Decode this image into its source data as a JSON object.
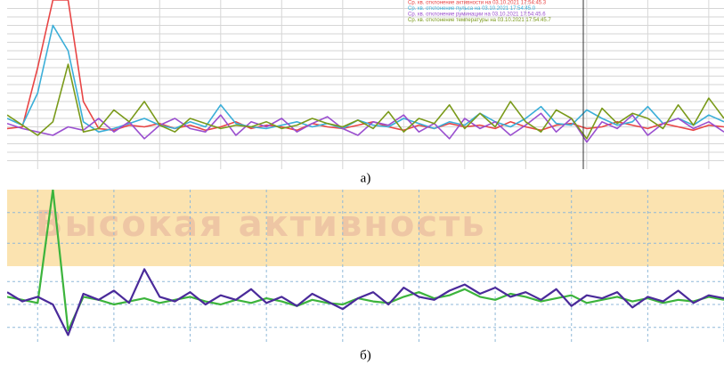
{
  "chart_data": [
    {
      "type": "line",
      "caption": "а)",
      "xlim": [
        0,
        47
      ],
      "ylim": [
        0,
        100
      ],
      "xticks": [
        2,
        6,
        10,
        14,
        18,
        22,
        26,
        30,
        34,
        38,
        42,
        46
      ],
      "yticks": [
        5,
        10,
        15,
        20,
        25,
        30,
        35,
        40,
        45,
        50,
        55,
        60,
        65,
        70,
        75,
        80,
        85,
        90,
        95
      ],
      "grid": true,
      "legend": "upper right",
      "series": [
        {
          "name": "Ср. кв. отклонение активности на 03.10.2021 17:54:45.3",
          "color": "#e84545",
          "values": [
            24,
            25,
            60,
            100,
            100,
            40,
            24,
            23,
            26,
            25,
            27,
            24,
            26,
            23,
            25,
            28,
            24,
            26,
            25,
            23,
            27,
            25,
            24,
            26,
            28,
            25,
            23,
            26,
            24,
            27,
            25,
            26,
            24,
            28,
            25,
            23,
            26,
            27,
            24,
            25,
            28,
            26,
            24,
            27,
            25,
            23,
            26,
            25
          ]
        },
        {
          "name": "Ср. кв. отклонение пульса на 03.10.2021 17:54:45.0",
          "color": "#3aaed8",
          "values": [
            30,
            26,
            45,
            85,
            70,
            28,
            22,
            24,
            27,
            30,
            26,
            24,
            28,
            25,
            38,
            27,
            25,
            24,
            26,
            28,
            25,
            27,
            24,
            29,
            26,
            25,
            30,
            27,
            24,
            28,
            26,
            33,
            28,
            25,
            30,
            37,
            27,
            26,
            35,
            30,
            26,
            28,
            37,
            27,
            30,
            26,
            32,
            28
          ]
        },
        {
          "name": "Ср. кв. отклонение руминации на 03.10.2021 17:54:45.6",
          "color": "#9a4fcf",
          "values": [
            27,
            24,
            22,
            20,
            25,
            23,
            30,
            22,
            28,
            18,
            26,
            30,
            24,
            22,
            32,
            20,
            28,
            25,
            30,
            22,
            27,
            31,
            24,
            20,
            28,
            26,
            32,
            22,
            27,
            18,
            30,
            24,
            28,
            20,
            26,
            33,
            22,
            30,
            16,
            28,
            24,
            32,
            20,
            27,
            30,
            24,
            28,
            22
          ]
        },
        {
          "name": "Ср. кв. отклонение температуры на 03.10.2021 17:54:45.7",
          "color": "#7a9a1a",
          "values": [
            32,
            26,
            20,
            28,
            62,
            22,
            24,
            35,
            28,
            40,
            26,
            22,
            30,
            27,
            24,
            26,
            25,
            28,
            24,
            26,
            30,
            27,
            25,
            29,
            24,
            34,
            22,
            30,
            27,
            38,
            24,
            33,
            25,
            40,
            28,
            22,
            35,
            30,
            18,
            36,
            27,
            33,
            30,
            24,
            38,
            26,
            42,
            30
          ]
        }
      ]
    },
    {
      "type": "line",
      "caption": "б)",
      "xlim": [
        0,
        47
      ],
      "ylim": [
        0,
        100
      ],
      "xticks": [
        2,
        7,
        12,
        17,
        22,
        27,
        32,
        37,
        42,
        47
      ],
      "yticks": [
        10,
        25,
        40,
        65,
        85
      ],
      "grid": true,
      "band": {
        "from": 50,
        "to": 100,
        "label": "Высокая активность",
        "color": "#fbe3b0"
      },
      "series": [
        {
          "color": "#3cb43c",
          "values": [
            30,
            28,
            26,
            100,
            8,
            30,
            28,
            25,
            27,
            29,
            26,
            28,
            30,
            27,
            25,
            28,
            26,
            29,
            27,
            24,
            28,
            26,
            25,
            29,
            27,
            26,
            30,
            33,
            29,
            31,
            35,
            30,
            28,
            32,
            30,
            27,
            29,
            31,
            26,
            28,
            30,
            27,
            29,
            26,
            28,
            27,
            30,
            28
          ]
        },
        {
          "color": "#4a2a9a",
          "values": [
            33,
            27,
            30,
            25,
            5,
            32,
            28,
            34,
            26,
            48,
            30,
            27,
            33,
            25,
            31,
            28,
            35,
            26,
            30,
            24,
            32,
            27,
            22,
            29,
            33,
            25,
            36,
            30,
            28,
            34,
            38,
            32,
            36,
            30,
            33,
            28,
            35,
            24,
            31,
            29,
            33,
            23,
            30,
            27,
            34,
            26,
            31,
            29
          ]
        }
      ]
    }
  ]
}
